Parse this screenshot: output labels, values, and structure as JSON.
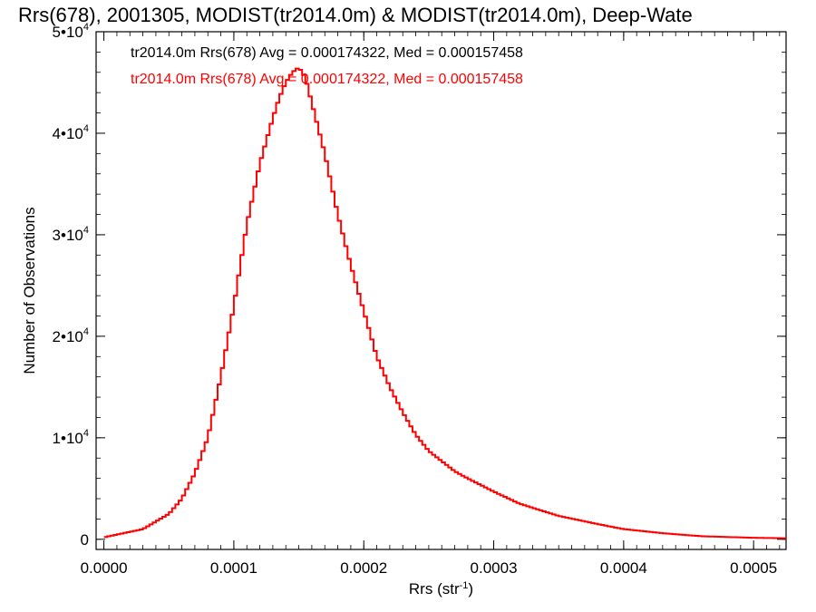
{
  "chart_data": {
    "type": "histogram",
    "title": "Rrs(678), 2001305, MODIST(tr2014.0m) & MODIST(tr2014.0m), Deep-Wate",
    "xlabel": "Rrs (str",
    "xlabel_sup": "-1",
    "xlabel_end": ")",
    "ylabel": "Number of Observations",
    "xlim": [
      -6e-06,
      0.000525
    ],
    "ylim": [
      -1000,
      50000
    ],
    "xticks": [
      0.0,
      0.0001,
      0.0002,
      0.0003,
      0.0004,
      0.0005
    ],
    "xtick_labels": [
      "0.0000",
      "0.0001",
      "0.0002",
      "0.0003",
      "0.0004",
      "0.0005"
    ],
    "yticks": [
      0,
      10000,
      20000,
      30000,
      40000,
      50000
    ],
    "ytick_labels": [
      {
        "base": "0",
        "exp": ""
      },
      {
        "base": "1•10",
        "exp": "4"
      },
      {
        "base": "2•10",
        "exp": "4"
      },
      {
        "base": "3•10",
        "exp": "4"
      },
      {
        "base": "4•10",
        "exp": "4"
      },
      {
        "base": "5•10",
        "exp": "4"
      }
    ],
    "grid": false,
    "legend_position": "top-left",
    "series": [
      {
        "name": "tr2014.0m Rrs(678) Avg = 0.000174322, Med = 0.000157458",
        "color": "#000000"
      },
      {
        "name": "tr2014.0m Rrs(678) Avg = 0.000174322, Med = 0.000157458",
        "color": "#ff0000"
      }
    ],
    "x": [
      0.0,
      3e-05,
      5e-05,
      6e-05,
      7e-05,
      8e-05,
      9e-05,
      0.0001,
      0.00011,
      0.00012,
      0.00013,
      0.000135,
      0.00014,
      0.000145,
      0.00015,
      0.000155,
      0.00016,
      0.00017,
      0.00018,
      0.00019,
      0.0002,
      0.00021,
      0.00022,
      0.00023,
      0.00024,
      0.00025,
      0.00026,
      0.00027,
      0.00028,
      0.0003,
      0.00032,
      0.00035,
      0.00038,
      0.0004,
      0.00043,
      0.00046,
      0.0005,
      0.000525
    ],
    "y": [
      200,
      1000,
      2500,
      4000,
      6500,
      10000,
      16000,
      23000,
      31000,
      37000,
      41500,
      43500,
      45000,
      46000,
      46500,
      45500,
      43000,
      38000,
      32000,
      27000,
      22500,
      18000,
      15000,
      12500,
      10300,
      8700,
      7700,
      6700,
      6000,
      4700,
      3500,
      2300,
      1500,
      1000,
      600,
      300,
      150,
      100
    ],
    "colors": {
      "axis": "#000000",
      "series_line": "#ff0000"
    }
  }
}
